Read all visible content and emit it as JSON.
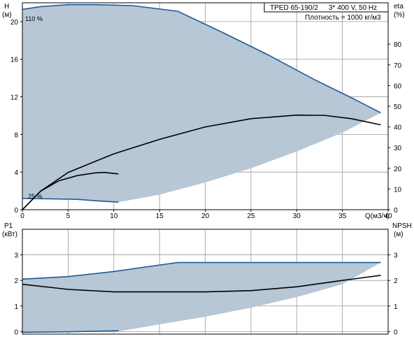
{
  "chart_data": [
    {
      "type": "line",
      "panel": "top",
      "header": {
        "model": "TPED 65-190/2",
        "supply": "3* 400 V, 50 Hz",
        "density": "Плотность = 1000 кг/м3"
      },
      "ylabel_left": "H",
      "unit_left": "(м)",
      "ylabel_right": "eta",
      "unit_right": "(%)",
      "xlabel": "Q(м3/ч)",
      "xlim": [
        0,
        40
      ],
      "ylim_left": [
        0,
        22
      ],
      "ylim_right": [
        0,
        100
      ],
      "x_ticks": [
        "0",
        "5",
        "10",
        "15",
        "20",
        "25",
        "30",
        "35",
        "40"
      ],
      "y_ticks_left": [
        "0",
        "4",
        "8",
        "12",
        "16",
        "20"
      ],
      "y_ticks_right": [
        "0",
        "10",
        "20",
        "30",
        "40",
        "50",
        "60",
        "70",
        "80"
      ],
      "annotations": [
        "110 %",
        "25 %"
      ],
      "grid": true,
      "colors": {
        "envelope_fill": "#b7c7d6",
        "max_curve": "#1f5a96",
        "min_curve": "#1f5a96",
        "efficiency": "#000000",
        "grid": "#9a9a9a"
      },
      "series": [
        {
          "role": "operating-envelope",
          "upper": {
            "x": [
              0,
              2,
              5,
              8,
              12,
              17,
              22,
              27,
              32,
              36,
              39.2
            ],
            "y": [
              21.3,
              21.6,
              21.8,
              21.8,
              21.7,
              21.1,
              18.8,
              16.4,
              13.8,
              11.9,
              10.3
            ]
          },
          "lower": {
            "x": [
              10.5,
              15,
              20,
              25,
              30,
              35,
              39.2
            ],
            "y": [
              0.8,
              1.6,
              2.9,
              4.4,
              6.2,
              8.2,
              10.3
            ]
          },
          "min_speed": {
            "x": [
              0,
              3,
              6,
              8,
              10.5
            ],
            "y": [
              1.2,
              1.15,
              1.1,
              0.95,
              0.8
            ]
          }
        },
        {
          "role": "efficiency-max-speed",
          "axis": "right",
          "x": [
            0,
            2,
            5,
            10,
            15,
            20,
            25,
            30,
            33,
            36,
            39.2
          ],
          "y": [
            0,
            9,
            18,
            27,
            34,
            40,
            44,
            45.7,
            45.6,
            44,
            41
          ]
        },
        {
          "role": "efficiency-min-speed",
          "axis": "right",
          "x": [
            0,
            2,
            4,
            6,
            8,
            9,
            10.5
          ],
          "y": [
            0,
            9,
            14,
            16.5,
            17.8,
            18,
            17.3
          ]
        }
      ]
    },
    {
      "type": "line",
      "panel": "bottom",
      "ylabel_left": "P1",
      "unit_left": "(кВт)",
      "ylabel_right": "NPSH",
      "unit_right": "(м)",
      "xlim": [
        0,
        40
      ],
      "ylim_left": [
        -0.1,
        4.0
      ],
      "ylim_right": [
        -0.1,
        4.0
      ],
      "y_ticks_left": [
        "0",
        "1",
        "2",
        "3"
      ],
      "y_ticks_right": [
        "0",
        "1",
        "2",
        "3"
      ],
      "grid": true,
      "series": [
        {
          "role": "power-envelope",
          "upper": {
            "x": [
              0,
              5,
              10,
              14,
              17,
              20,
              25,
              30,
              35,
              39.2
            ],
            "y": [
              2.05,
              2.15,
              2.35,
              2.55,
              2.7,
              2.7,
              2.7,
              2.7,
              2.7,
              2.7
            ]
          },
          "lower": {
            "x": [
              10.5,
              15,
              20,
              25,
              30,
              35,
              39.2
            ],
            "y": [
              0.0,
              0.28,
              0.58,
              0.93,
              1.35,
              1.85,
              2.7
            ]
          }
        },
        {
          "role": "power-min-speed",
          "x": [
            0,
            5,
            10.5
          ],
          "y": [
            -0.03,
            -0.01,
            0.03
          ]
        },
        {
          "role": "npsh",
          "axis": "right",
          "x": [
            0,
            5,
            10,
            15,
            20,
            25,
            30,
            35,
            39.2
          ],
          "y": [
            1.85,
            1.65,
            1.55,
            1.55,
            1.55,
            1.6,
            1.75,
            2.0,
            2.2
          ]
        }
      ]
    }
  ]
}
